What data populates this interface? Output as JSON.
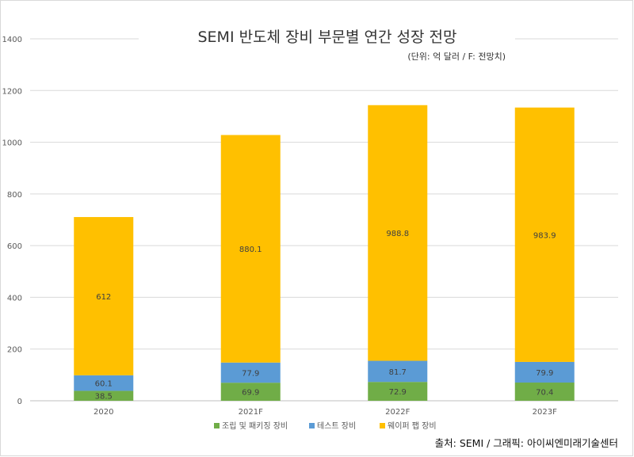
{
  "chart_data": {
    "type": "bar",
    "stacked": true,
    "title": "SEMI 반도체 장비 부문별 연간 성장 전망",
    "subtitle": "(단위: 억 달러 / F: 전망치)",
    "categories": [
      "2020",
      "2021F",
      "2022F",
      "2023F"
    ],
    "series": [
      {
        "name": "조립 및 패키징 장비",
        "values": [
          38.5,
          69.9,
          72.9,
          70.4
        ],
        "labels": [
          "38.5",
          "69.9",
          "72.9",
          "70.4"
        ],
        "color": "#70ad47"
      },
      {
        "name": "테스트 장비",
        "values": [
          60.1,
          77.9,
          81.7,
          79.9
        ],
        "labels": [
          "60.1",
          "77.9",
          "81.7",
          "79.9"
        ],
        "color": "#5b9bd5"
      },
      {
        "name": "웨이퍼 팹 장비",
        "values": [
          612,
          880.1,
          988.8,
          983.9
        ],
        "labels": [
          "612",
          "880.1",
          "988.8",
          "983.9"
        ],
        "color": "#ffc000"
      }
    ],
    "ylim": [
      0,
      1400
    ],
    "yticks": [
      0,
      200,
      400,
      600,
      800,
      1000,
      1200,
      1400
    ],
    "ytick_labels": [
      "0",
      "200",
      "400",
      "600",
      "800",
      "1000",
      "1200",
      "1400"
    ],
    "grid": true,
    "legend_position": "bottom-center",
    "xlabel": "",
    "ylabel": ""
  },
  "source": "출처: SEMI / 그래픽: 아이씨엔미래기술센터"
}
